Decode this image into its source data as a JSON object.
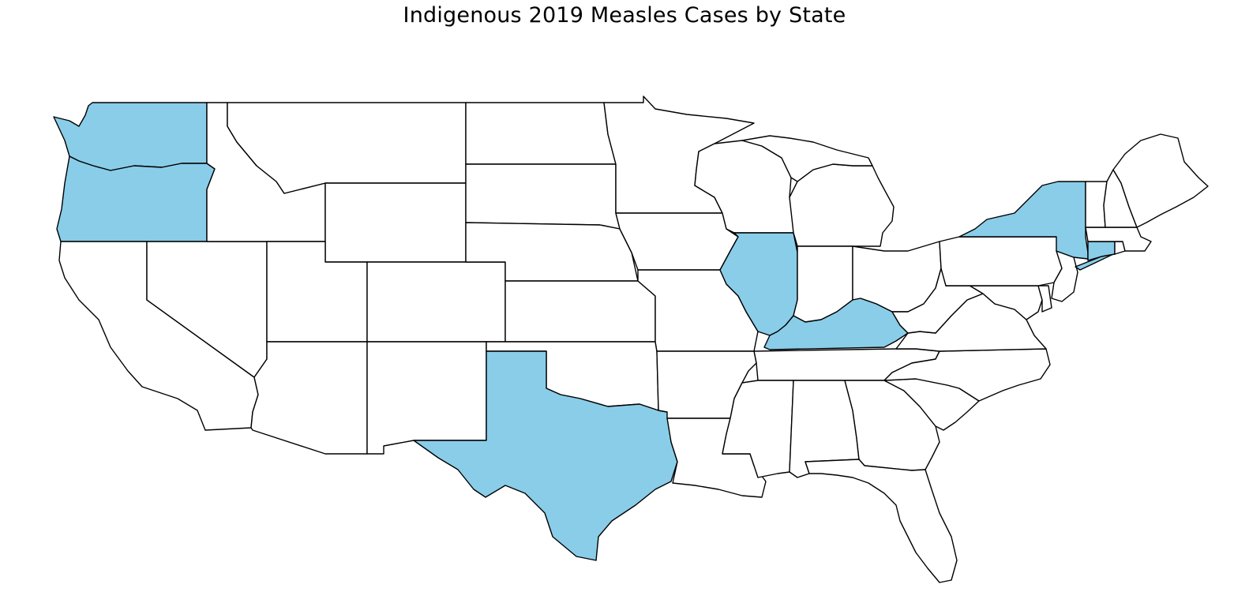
{
  "title": "Indigenous 2019 Measles Cases by State",
  "colors": {
    "highlight": "#89cde9",
    "default": "#ffffff",
    "border": "#000000"
  },
  "highlighted_states": [
    "Washington",
    "Oregon",
    "Texas",
    "Illinois",
    "Kentucky",
    "New York",
    "Connecticut"
  ]
}
